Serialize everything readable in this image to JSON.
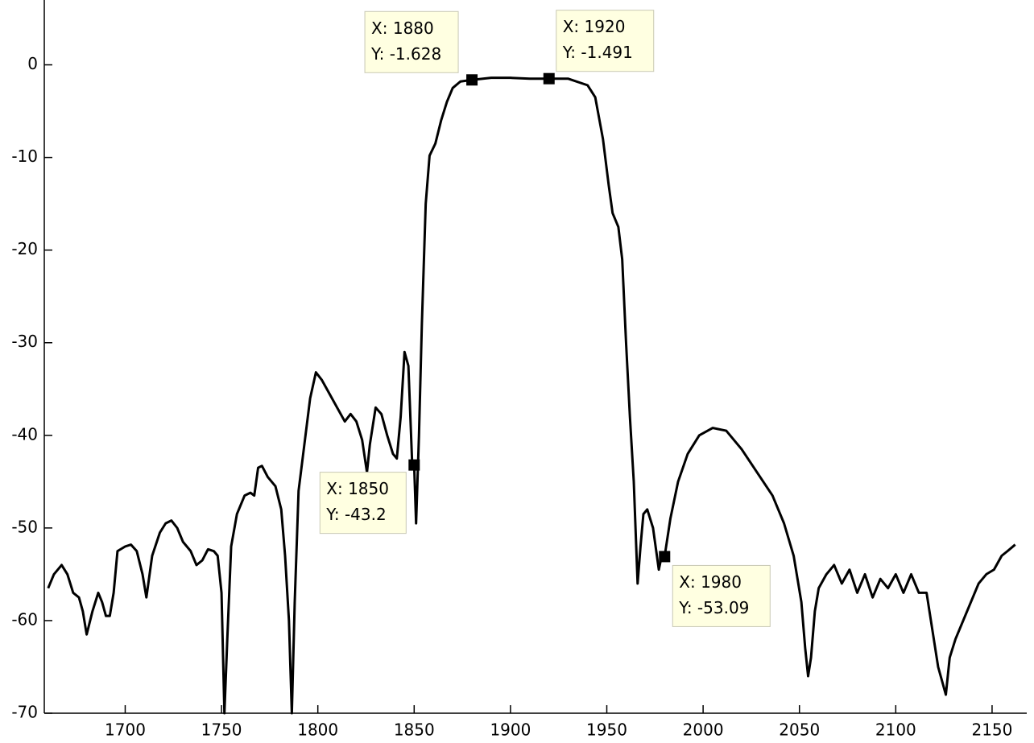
{
  "chart_data": {
    "type": "line",
    "x": [
      1660,
      1663,
      1667,
      1670,
      1673,
      1676,
      1678,
      1680,
      1683,
      1686,
      1688,
      1690,
      1692,
      1694,
      1696,
      1700,
      1703,
      1706,
      1709,
      1711,
      1714,
      1718,
      1721,
      1724,
      1727,
      1730,
      1734,
      1737,
      1740,
      1743,
      1746,
      1748,
      1750,
      1751.5,
      1753,
      1755,
      1758,
      1762,
      1765,
      1767,
      1769,
      1771,
      1774,
      1778,
      1781,
      1783,
      1785,
      1786.5,
      1788,
      1790,
      1793,
      1796,
      1799,
      1802,
      1806,
      1810,
      1814,
      1817,
      1820,
      1823,
      1825.5,
      1827,
      1830,
      1833,
      1836,
      1839,
      1841,
      1843,
      1845,
      1847,
      1849,
      1850,
      1851,
      1852.5,
      1854,
      1856,
      1858,
      1861,
      1864,
      1867,
      1870,
      1874,
      1880,
      1890,
      1900,
      1910,
      1920,
      1930,
      1940,
      1944,
      1948,
      1951,
      1953,
      1956,
      1958,
      1960,
      1962,
      1964,
      1966,
      1967.5,
      1969,
      1971,
      1974,
      1976,
      1977,
      1978,
      1980,
      1983,
      1987,
      1992,
      1998,
      2005,
      2012,
      2020,
      2028,
      2036,
      2042,
      2047,
      2051,
      2053,
      2054.5,
      2056,
      2058,
      2060,
      2064,
      2068,
      2072,
      2076,
      2080,
      2084,
      2088,
      2092,
      2096,
      2100,
      2104,
      2108,
      2112,
      2116,
      2119,
      2122,
      2124,
      2126,
      2128,
      2131,
      2135,
      2139,
      2143,
      2147,
      2151,
      2155,
      2158,
      2162
    ],
    "series": [
      {
        "color": "#000000",
        "values": [
          -56.5,
          -55,
          -54,
          -55,
          -57,
          -57.5,
          -59,
          -61.5,
          -59,
          -57,
          -58,
          -59.5,
          -59.5,
          -57,
          -52.5,
          -52,
          -51.8,
          -52.5,
          -55,
          -57.5,
          -53,
          -50.5,
          -49.5,
          -49.2,
          -50,
          -51.5,
          -52.5,
          -54,
          -53.5,
          -52.3,
          -52.5,
          -53,
          -57,
          -70,
          -62,
          -52,
          -48.5,
          -46.5,
          -46.2,
          -46.5,
          -43.5,
          -43.3,
          -44.5,
          -45.5,
          -48,
          -53,
          -60,
          -70,
          -58,
          -46,
          -41,
          -36,
          -33.2,
          -34,
          -35.5,
          -37,
          -38.5,
          -37.7,
          -38.5,
          -40.5,
          -44,
          -41,
          -37,
          -37.7,
          -40,
          -42,
          -42.5,
          -38,
          -31,
          -32.5,
          -43.2,
          -43.2,
          -49.5,
          -40,
          -28,
          -15,
          -9.8,
          -8.5,
          -6,
          -4,
          -2.5,
          -1.8,
          -1.628,
          -1.4,
          -1.4,
          -1.5,
          -1.491,
          -1.5,
          -2.2,
          -3.5,
          -8,
          -13,
          -16,
          -17.5,
          -21,
          -30,
          -38,
          -45,
          -56,
          -52,
          -48.5,
          -48,
          -50,
          -53,
          -54.5,
          -53.5,
          -53.09,
          -49,
          -45,
          -42,
          -40,
          -39.2,
          -39.5,
          -41.5,
          -44,
          -46.5,
          -49.5,
          -53,
          -58,
          -63,
          -66,
          -64,
          -59,
          -56.5,
          -55,
          -54,
          -56,
          -54.5,
          -57,
          -55,
          -57.5,
          -55.5,
          -56.5,
          -55,
          -57,
          -55,
          -57,
          -57,
          -61,
          -65,
          -66.5,
          -68,
          -64,
          -62,
          -60,
          -58,
          -56,
          -55,
          -54.5,
          -53,
          -52.5,
          -51.8
        ]
      }
    ],
    "xlim": [
      1658,
      2168
    ],
    "ylim": [
      -70,
      7
    ],
    "xticks": [
      1700,
      1750,
      1800,
      1850,
      1900,
      1950,
      2000,
      2050,
      2100,
      2150
    ],
    "yticks": [
      0,
      -10,
      -20,
      -30,
      -40,
      -50,
      -60,
      -70
    ],
    "annotations": [
      {
        "x": 1880,
        "y": -1.628,
        "text": [
          "X: 1880",
          "Y: -1.628"
        ]
      },
      {
        "x": 1920,
        "y": -1.491,
        "text": [
          "X: 1920",
          "Y: -1.491"
        ]
      },
      {
        "x": 1850,
        "y": -43.2,
        "text": [
          "X: 1850",
          "Y: -43.2"
        ]
      },
      {
        "x": 1980,
        "y": -53.09,
        "text": [
          "X: 1980",
          "Y: -53.09"
        ]
      }
    ]
  }
}
